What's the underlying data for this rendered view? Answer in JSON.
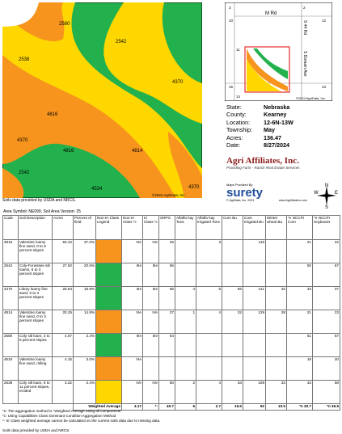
{
  "soil_map": {
    "labels": [
      "2580",
      "2542",
      "2538",
      "4370",
      "4816",
      "4816",
      "4814",
      "4370",
      "4534",
      "2542",
      "4370"
    ],
    "copyright": "©2024 AgriData, Inc.",
    "source": "Soils data provided by USDA and NRCS."
  },
  "locator_map": {
    "roads": [
      "M Rd",
      "S Domain Ave",
      "S 44 Rd"
    ],
    "sections": [
      "3",
      "2",
      "10",
      "11",
      "12",
      "15",
      "14",
      "13"
    ],
    "copyright": "©2024 AgriData, Inc."
  },
  "info": [
    {
      "label": "State:",
      "value": "Nebraska"
    },
    {
      "label": "County:",
      "value": "Kearney"
    },
    {
      "label": "Location:",
      "value": "12-6N-13W"
    },
    {
      "label": "Township:",
      "value": "May"
    },
    {
      "label": "Acres:",
      "value": "136.47"
    },
    {
      "label": "Date:",
      "value": "8/27/2024"
    }
  ],
  "logo": {
    "name": "Agri Affiliates, Inc.",
    "tagline": "Providing Farm - Ranch Real Estate Services"
  },
  "provider": {
    "caption": "Maps Provided By",
    "name": "surety",
    "copyright": "© AgriData, Inc. 2023",
    "url": "www.AgriDataInc.com"
  },
  "compass": [
    "N",
    "W",
    "E",
    "S"
  ],
  "table": {
    "area": "Area Symbol: NE099, Soil Area Version: 25",
    "headers": [
      "Code",
      "Soil Description",
      "Acres",
      "Percent of field",
      "Non-Irr Class Legend",
      "Non-Irr Class *c",
      "Irr Class *c",
      "SRPG",
      "Alfalfa hay Tons",
      "Alfalfa hay Irrigated Tons",
      "Corn Bu",
      "Corn Irrigated Bu",
      "Winter wheat Bu",
      "*n NCCPI Corn",
      "*n NCCPI Soybeans"
    ],
    "rows": [
      [
        "4816",
        "Valentine loamy fine sand, 0 to 9 percent slopes",
        "50.42",
        "37.0%",
        null,
        "VIe",
        "IVe",
        "25",
        null,
        "3",
        null,
        "118",
        null,
        "21",
        "22"
      ],
      [
        "2542",
        "Coly-Funessee silt loams, 6 to 3 percent slopes",
        "27.92",
        "20.5%",
        null,
        "IIIe",
        "IIIe",
        "66",
        null,
        null,
        null,
        null,
        null,
        "50",
        "67"
      ],
      [
        "4370",
        "Libory loamy fine sand, 0 to 3 percent slopes",
        "25.84",
        "18.9%",
        null,
        "IIIe",
        "IIIe",
        "66",
        "4",
        "5",
        "56",
        "141",
        "32",
        "33",
        "37"
      ],
      [
        "4814",
        "Valentine loamy fine sand, 0 to 3 percent slopes",
        "20.25",
        "14.8%",
        null,
        "VIe",
        "IVe",
        "27",
        "1",
        "4",
        "32",
        "129",
        "28",
        "21",
        "23"
      ],
      [
        "2580",
        "Coly silt loam, 3 to 6 percent slopes",
        "4.67",
        "3.4%",
        null,
        "IIIe",
        "IIIe",
        "54",
        null,
        null,
        null,
        null,
        null,
        "51",
        "67"
      ],
      [
        "4534",
        "Valentine loamy fine sand, rolling",
        "4.15",
        "3.0%",
        null,
        "VIe",
        null,
        null,
        null,
        null,
        null,
        null,
        null,
        "19",
        "20"
      ],
      [
        "2538",
        "Coly silt loam, 6 to 11 percent slopes, eroded",
        "3.22",
        "2.4%",
        null,
        "IVe",
        "IVe",
        "50",
        "2",
        "4",
        "33",
        "108",
        "33",
        "43",
        "58"
      ]
    ],
    "legend_colors": [
      "#f7941d",
      "#22b14c",
      "#22b14c",
      "#f7941d",
      "#22b14c",
      "#f7941d",
      "#ffd700"
    ],
    "weighted": {
      "label": "Weighted Average",
      "values": [
        "4.17",
        "*-",
        "40.7",
        "6",
        "2.7",
        "16.5",
        "92",
        "10.5",
        "*n 30.7",
        "*n 36.5"
      ]
    },
    "notes": [
      "*n: The aggregation method is \"Weighted Average using all components\"",
      "*c: Using Capabilities Class Dominant Condition Aggregation Method",
      "*- Irr Class weighted average cannot be calculated on the current soils data due to missing data."
    ],
    "source": "Soils data provided by USDA and NRCS."
  }
}
